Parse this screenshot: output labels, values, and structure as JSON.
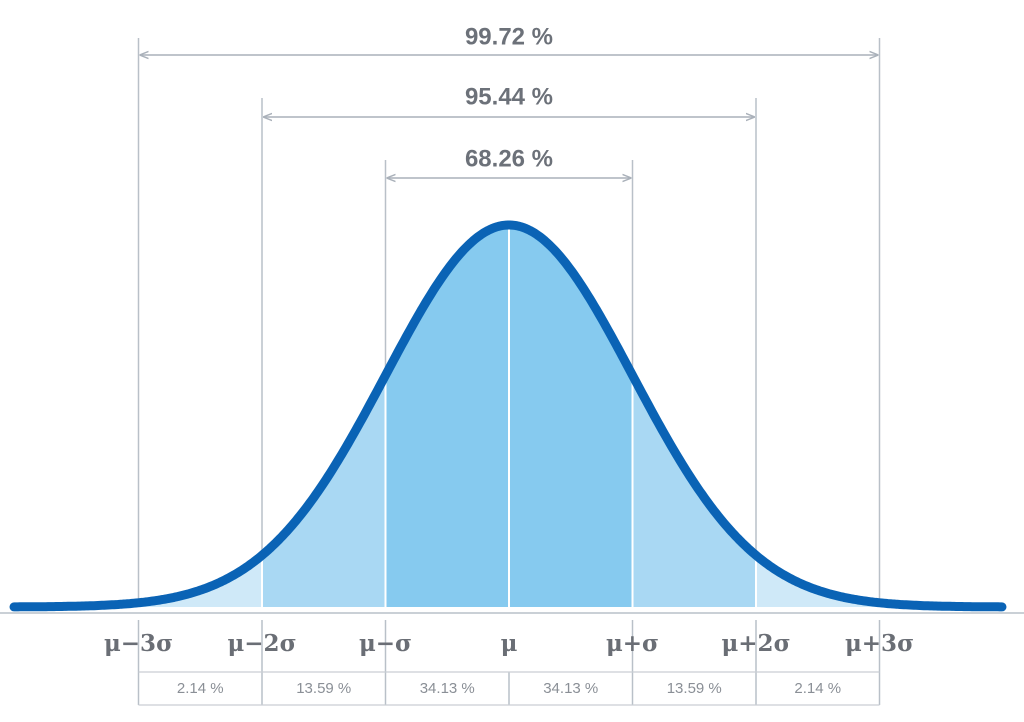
{
  "ranges": [
    {
      "label": "99.72 %"
    },
    {
      "label": "95.44 %"
    },
    {
      "label": "68.26 %"
    }
  ],
  "axis_labels": [
    "μ−3σ",
    "μ−2σ",
    "μ−σ",
    "μ",
    "μ+σ",
    "μ+2σ",
    "μ+3σ"
  ],
  "segments": [
    "2.14 %",
    "13.59 %",
    "34.13 %",
    "34.13 %",
    "13.59 %",
    "2.14 %"
  ]
}
